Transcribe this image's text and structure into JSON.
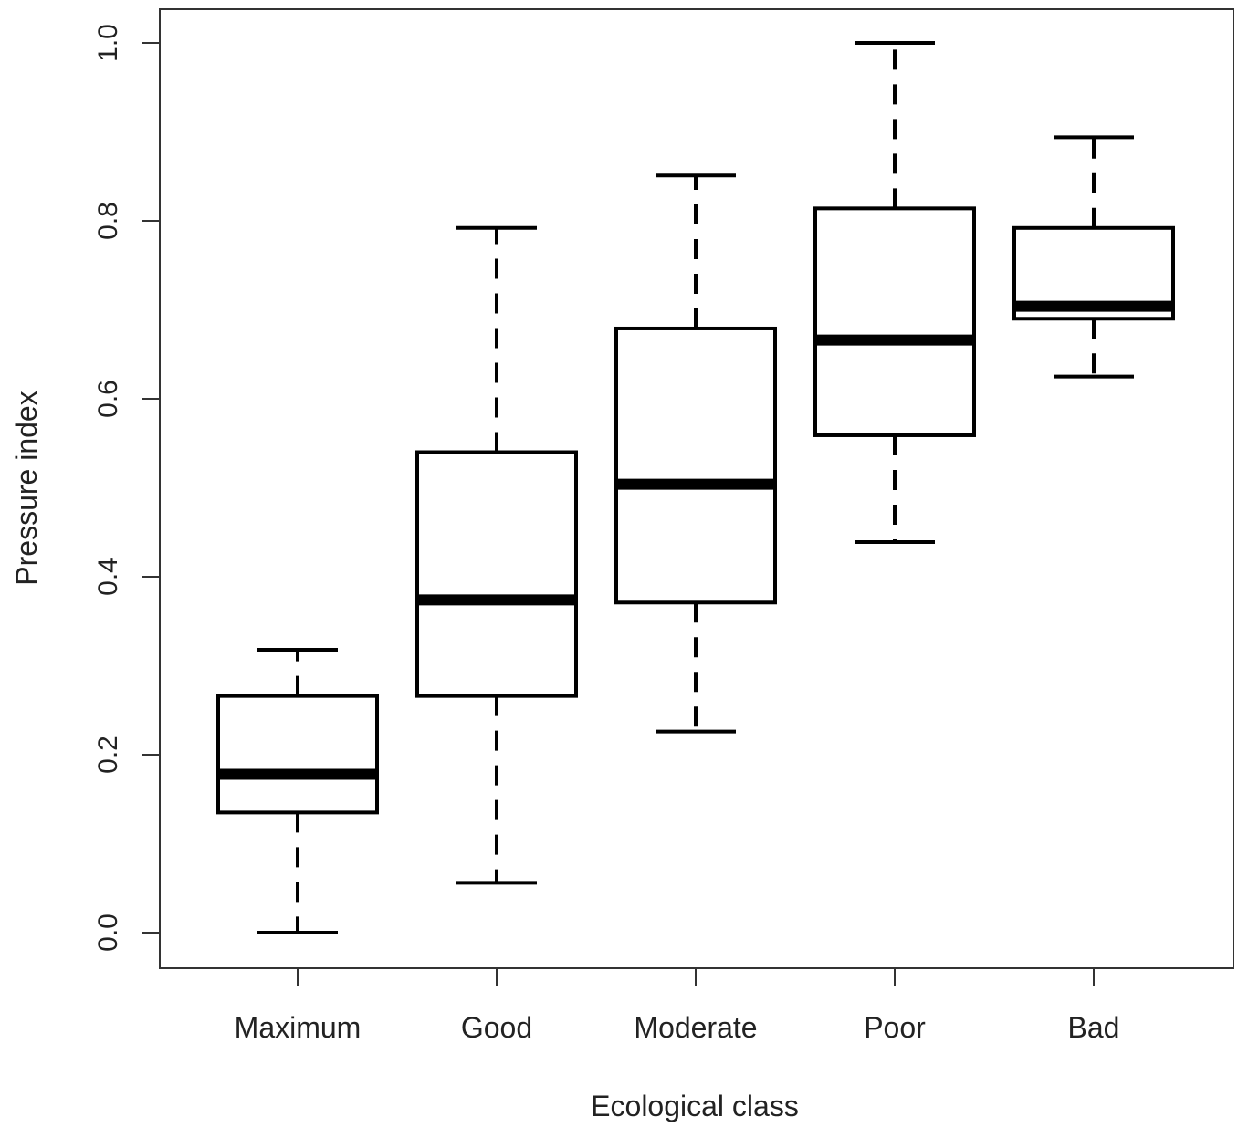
{
  "chart_data": {
    "type": "box",
    "xlabel": "Ecological class",
    "ylabel": "Pressure index",
    "ylim": [
      -0.04,
      1.04
    ],
    "yticks": [
      0.0,
      0.2,
      0.4,
      0.6,
      0.8,
      1.0
    ],
    "ytick_labels": [
      "0.0",
      "0.2",
      "0.4",
      "0.6",
      "0.8",
      "1.0"
    ],
    "categories": [
      "Maximum",
      "Good",
      "Moderate",
      "Poor",
      "Bad"
    ],
    "boxes": [
      {
        "category": "Maximum",
        "whisker_low": 0.0,
        "q1": 0.135,
        "median": 0.178,
        "q3": 0.266,
        "whisker_high": 0.318
      },
      {
        "category": "Good",
        "whisker_low": 0.056,
        "q1": 0.266,
        "median": 0.374,
        "q3": 0.54,
        "whisker_high": 0.792
      },
      {
        "category": "Moderate",
        "whisker_low": 0.226,
        "q1": 0.371,
        "median": 0.504,
        "q3": 0.679,
        "whisker_high": 0.851
      },
      {
        "category": "Poor",
        "whisker_low": 0.439,
        "q1": 0.559,
        "median": 0.666,
        "q3": 0.814,
        "whisker_high": 1.0
      },
      {
        "category": "Bad",
        "whisker_low": 0.625,
        "q1": 0.69,
        "median": 0.704,
        "q3": 0.792,
        "whisker_high": 0.894
      }
    ],
    "colors": {
      "stroke": "#000000",
      "fill": "#ffffff",
      "text": "#222222"
    }
  }
}
